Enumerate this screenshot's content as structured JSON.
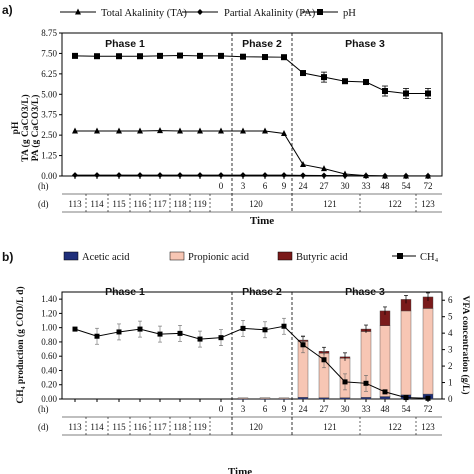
{
  "chart_data": [
    {
      "panel": "a)",
      "type": "line",
      "legend": [
        {
          "name": "Total Akalinity (TA)",
          "marker": "triangle"
        },
        {
          "name": "Partial Akalinity (PA)",
          "marker": "diamond"
        },
        {
          "name": "pH",
          "marker": "square"
        }
      ],
      "ylabel_lines": [
        "pH",
        "TA (g CaCO3/L)",
        "PA (g CaCO3/L)"
      ],
      "yticks": [
        "0.00",
        "1.25",
        "2.50",
        "3.75",
        "5.00",
        "6.25",
        "7.50",
        "8.75"
      ],
      "ylim": [
        0,
        8.75
      ],
      "phases": [
        "Phase 1",
        "Phase 2",
        "Phase 3"
      ],
      "h_label": "(h)",
      "d_label": "(d)",
      "h_ticks": [
        "0",
        "3",
        "6",
        "9",
        "24",
        "27",
        "30",
        "33",
        "48",
        "54",
        "72"
      ],
      "d_ticks": [
        "113",
        "114",
        "115",
        "116",
        "117",
        "118",
        "119",
        "120",
        "121",
        "122",
        "123"
      ],
      "xlabel": "Time",
      "series": [
        {
          "name": "Total Akalinity (TA)",
          "values": [
            2.75,
            2.75,
            2.75,
            2.75,
            2.78,
            2.75,
            2.75,
            2.75,
            2.75,
            2.75,
            2.6,
            0.7,
            0.45,
            0.12,
            0.02,
            0.0,
            0.0,
            0.0
          ]
        },
        {
          "name": "Partial Akalinity (PA)",
          "values": [
            0.05,
            0.05,
            0.05,
            0.05,
            0.05,
            0.05,
            0.05,
            0.05,
            0.05,
            0.05,
            0.05,
            0.04,
            0.03,
            0.02,
            0.02,
            0.01,
            0.01,
            0.01
          ]
        },
        {
          "name": "pH",
          "values": [
            7.35,
            7.33,
            7.33,
            7.33,
            7.35,
            7.37,
            7.35,
            7.35,
            7.3,
            7.28,
            7.27,
            6.3,
            6.05,
            5.8,
            5.75,
            5.2,
            5.05,
            5.05
          ]
        }
      ]
    },
    {
      "panel": "b)",
      "type": "bar+line",
      "legend": [
        {
          "name": "Acetic acid",
          "color": "#1f2f7a"
        },
        {
          "name": "Propionic acid",
          "color": "#f7c6b4"
        },
        {
          "name": "Butyric acid",
          "color": "#7a1a1a"
        },
        {
          "name": "CH₄",
          "marker": "square"
        }
      ],
      "ylabel_left": "CH₄ production (g COD/L d)",
      "ylabel_right": "VFA concentration (g/L)",
      "yticks_left": [
        "0.00",
        "0.20",
        "0.40",
        "0.60",
        "0.80",
        "1.00",
        "1.20",
        "1.40"
      ],
      "yticks_right": [
        "0",
        "1",
        "2",
        "3",
        "4",
        "5",
        "6"
      ],
      "ylim_left": [
        0,
        1.5
      ],
      "ylim_right": [
        0,
        6.5
      ],
      "phases": [
        "Phase 1",
        "Phase 2",
        "Phase 3"
      ],
      "h_label": "(h)",
      "d_label": "(d)",
      "h_ticks": [
        "0",
        "3",
        "6",
        "9",
        "24",
        "27",
        "30",
        "33",
        "48",
        "54",
        "72"
      ],
      "d_ticks": [
        "113",
        "114",
        "115",
        "116",
        "117",
        "118",
        "119",
        "120",
        "121",
        "122",
        "123"
      ],
      "xlabel": "Time",
      "ch4": [
        0.98,
        0.88,
        0.94,
        0.98,
        0.91,
        0.92,
        0.84,
        0.86,
        0.99,
        0.97,
        1.02,
        0.76,
        0.55,
        0.24,
        0.22,
        0.1,
        0.02,
        0.01
      ],
      "vfa_bars": [
        {
          "acetic": 0.02,
          "propionic": 0.05,
          "butyric": 0.0
        },
        {
          "acetic": 0.02,
          "propionic": 0.06,
          "butyric": 0.0
        },
        {
          "acetic": 0.02,
          "propionic": 0.05,
          "butyric": 0.0
        },
        {
          "acetic": 0.1,
          "propionic": 3.4,
          "butyric": 0.08
        },
        {
          "acetic": 0.08,
          "propionic": 2.7,
          "butyric": 0.12
        },
        {
          "acetic": 0.08,
          "propionic": 2.4,
          "butyric": 0.08
        },
        {
          "acetic": 0.1,
          "propionic": 4.0,
          "butyric": 0.15
        },
        {
          "acetic": 0.15,
          "propionic": 4.3,
          "butyric": 0.9
        },
        {
          "acetic": 0.25,
          "propionic": 5.1,
          "butyric": 0.7
        },
        {
          "acetic": 0.3,
          "propionic": 5.2,
          "butyric": 0.7
        }
      ]
    }
  ]
}
